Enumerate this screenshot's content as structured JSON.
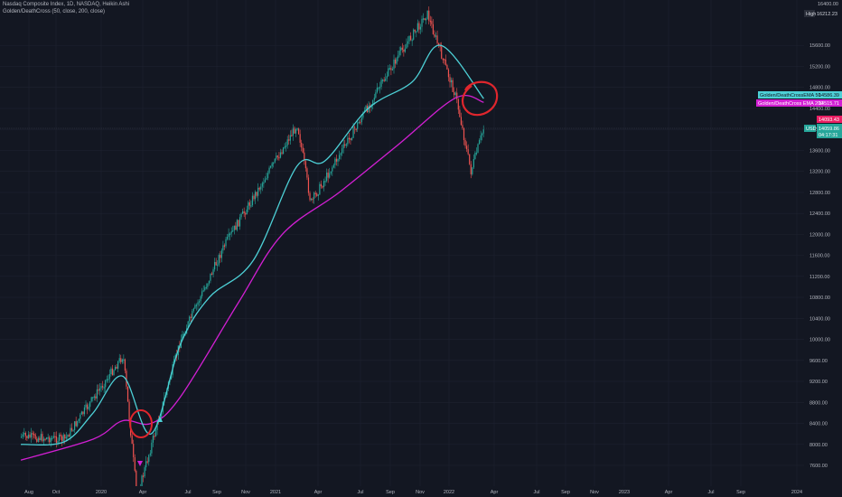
{
  "header": {
    "title": "Nasdaq Composite Index, 1D, NASDAQ, Heikin Ashi",
    "indicator": "Golden/DeathCross (50, close, 200, close)"
  },
  "colors": {
    "background": "#131722",
    "up_candle": "#26a69a",
    "down_candle": "#ef5350",
    "ema_fast": "#4dd0d6",
    "ema_slow": "#d21fd3",
    "annotation": "#e0262d",
    "grid": "#1e2230"
  },
  "price_scale": {
    "top_label": "16400.00",
    "high_tag_label": "High",
    "high_value": "16212.23",
    "labels": [
      15600,
      15200,
      14800,
      14400,
      14000,
      13600,
      13200,
      12800,
      12400,
      12000,
      11600,
      11200,
      10800,
      10400,
      10000,
      9600,
      9200,
      8800,
      8400,
      8000,
      7600
    ]
  },
  "legend_tags": {
    "ema_fast": {
      "label": "Golden/DeathCrossEMA 50",
      "value": "14586.39"
    },
    "ema_slow": {
      "label": "Golden/DeathCross EMA 200",
      "value": "14515.71"
    },
    "price": {
      "value": "14093.43"
    },
    "last": {
      "label": "USD",
      "value": "14059.86",
      "countdown": "04:17:31"
    }
  },
  "time_axis": {
    "labels": [
      "Aug",
      "Oct",
      "2020",
      "Apr",
      "Jul",
      "Sep",
      "Nov",
      "2021",
      "Apr",
      "Jul",
      "Sep",
      "Nov",
      "2022",
      "Apr",
      "Jul",
      "Sep",
      "Nov",
      "2023",
      "Apr",
      "Jul",
      "Sep",
      "2024"
    ]
  },
  "chart_data": {
    "type": "candlestick",
    "series": [
      {
        "name": "Golden/DeathCross EMA 50",
        "values": [
          {
            "x": "2019-07",
            "y": 8000
          },
          {
            "x": "2019-10",
            "y": 8050
          },
          {
            "x": "2019-12",
            "y": 8600
          },
          {
            "x": "2020-02",
            "y": 9300
          },
          {
            "x": "2020-04",
            "y": 8200
          },
          {
            "x": "2020-06",
            "y": 9900
          },
          {
            "x": "2020-08",
            "y": 10800
          },
          {
            "x": "2020-11",
            "y": 11500
          },
          {
            "x": "2021-02",
            "y": 13300
          },
          {
            "x": "2021-04",
            "y": 13400
          },
          {
            "x": "2021-07",
            "y": 14400
          },
          {
            "x": "2021-10",
            "y": 14900
          },
          {
            "x": "2021-12",
            "y": 15600
          },
          {
            "x": "2022-03",
            "y": 14586.39
          }
        ]
      },
      {
        "name": "Golden/DeathCross EMA 200",
        "values": [
          {
            "x": "2019-07",
            "y": 7700
          },
          {
            "x": "2019-12",
            "y": 8100
          },
          {
            "x": "2020-02",
            "y": 8450
          },
          {
            "x": "2020-04",
            "y": 8400
          },
          {
            "x": "2020-06",
            "y": 8900
          },
          {
            "x": "2020-10",
            "y": 10700
          },
          {
            "x": "2021-01",
            "y": 12000
          },
          {
            "x": "2021-05",
            "y": 12800
          },
          {
            "x": "2021-09",
            "y": 13700
          },
          {
            "x": "2022-01",
            "y": 14600
          },
          {
            "x": "2022-03",
            "y": 14515.71
          }
        ]
      },
      {
        "name": "Nasdaq Composite Index",
        "values": [
          {
            "x": "2019-07",
            "y": 8150
          },
          {
            "x": "2019-10",
            "y": 8100
          },
          {
            "x": "2020-02",
            "y": 9700
          },
          {
            "x": "2020-03",
            "y": 7000
          },
          {
            "x": "2020-06",
            "y": 10000
          },
          {
            "x": "2020-09",
            "y": 11800
          },
          {
            "x": "2021-02",
            "y": 14100
          },
          {
            "x": "2021-03",
            "y": 12600
          },
          {
            "x": "2021-09",
            "y": 15400
          },
          {
            "x": "2021-11",
            "y": 16212.23
          },
          {
            "x": "2022-01",
            "y": 14600
          },
          {
            "x": "2022-02",
            "y": 13200
          },
          {
            "x": "2022-03",
            "y": 14059.86
          }
        ]
      }
    ],
    "signals": [
      {
        "type": "death-cross",
        "x": "2020-03",
        "marker": "down-triangle"
      },
      {
        "type": "golden-cross",
        "x": "2020-04",
        "marker": "up-triangle"
      }
    ],
    "annotations": [
      {
        "type": "circle",
        "x": "2020-03",
        "color": "#e0262d"
      },
      {
        "type": "circle",
        "x": "2022-03",
        "color": "#e0262d"
      }
    ],
    "ylim": [
      7400,
      16400
    ],
    "grid": true
  }
}
